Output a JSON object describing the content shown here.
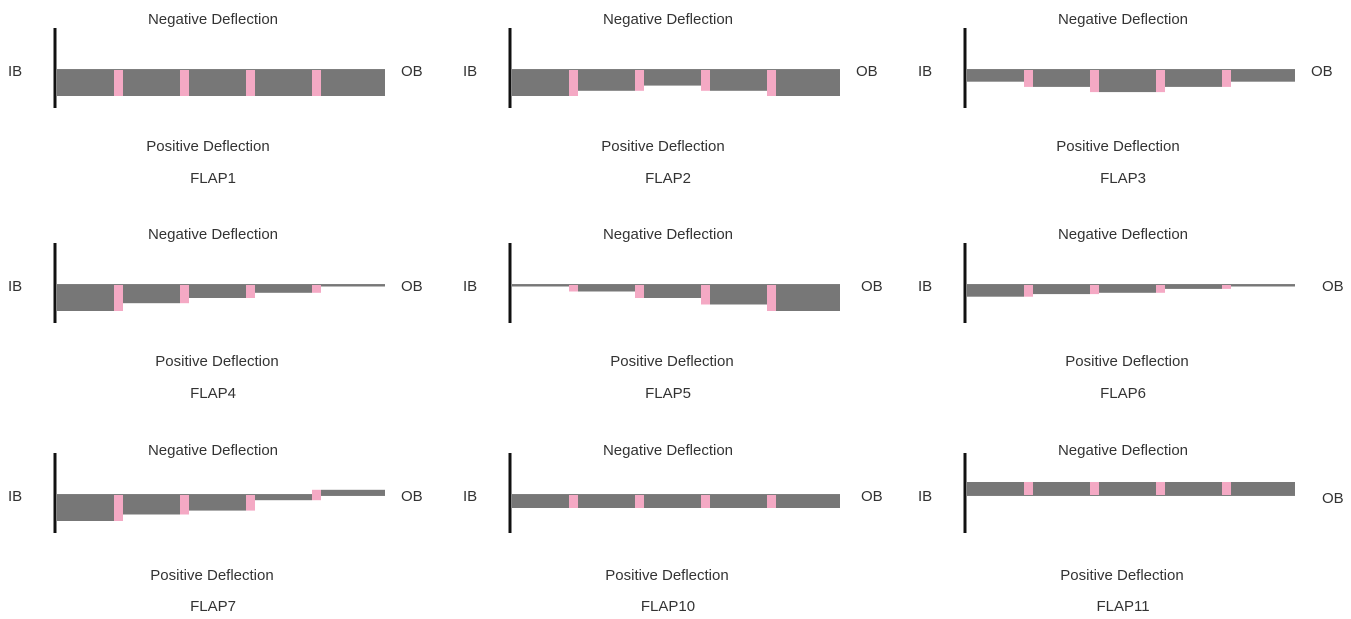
{
  "labels": {
    "negative": "Negative Deflection",
    "positive": "Positive Deflection",
    "inboard": "IB",
    "outboard": "OB"
  },
  "colors": {
    "flap_fill": "#777777",
    "gap_fill": "#f4a9c4",
    "wall": "#111111",
    "text": "#333333"
  },
  "flaps": [
    {
      "title": "FLAP1",
      "deflections": [
        1,
        1,
        1,
        1,
        1
      ]
    },
    {
      "title": "FLAP2",
      "deflections": [
        1,
        0.8,
        0.6,
        0.8,
        1
      ]
    },
    {
      "title": "FLAP3",
      "deflections": [
        0.45,
        0.65,
        0.85,
        0.65,
        0.45
      ]
    },
    {
      "title": "FLAP4",
      "deflections": [
        1,
        0.7,
        0.5,
        0.3,
        0
      ]
    },
    {
      "title": "FLAP5",
      "deflections": [
        0,
        0.25,
        0.5,
        0.75,
        1
      ]
    },
    {
      "title": "FLAP6",
      "deflections": [
        0.45,
        0.35,
        0.3,
        0.15,
        0
      ]
    },
    {
      "title": "FLAP7",
      "deflections": [
        1,
        0.75,
        0.6,
        0.2,
        -0.2
      ]
    },
    {
      "title": "FLAP10",
      "deflections": [
        0.5,
        0.5,
        0.5,
        0.5,
        0.5
      ]
    },
    {
      "title": "FLAP11",
      "deflections": [
        -0.5,
        -0.5,
        -0.5,
        -0.5,
        -0.5
      ]
    }
  ]
}
